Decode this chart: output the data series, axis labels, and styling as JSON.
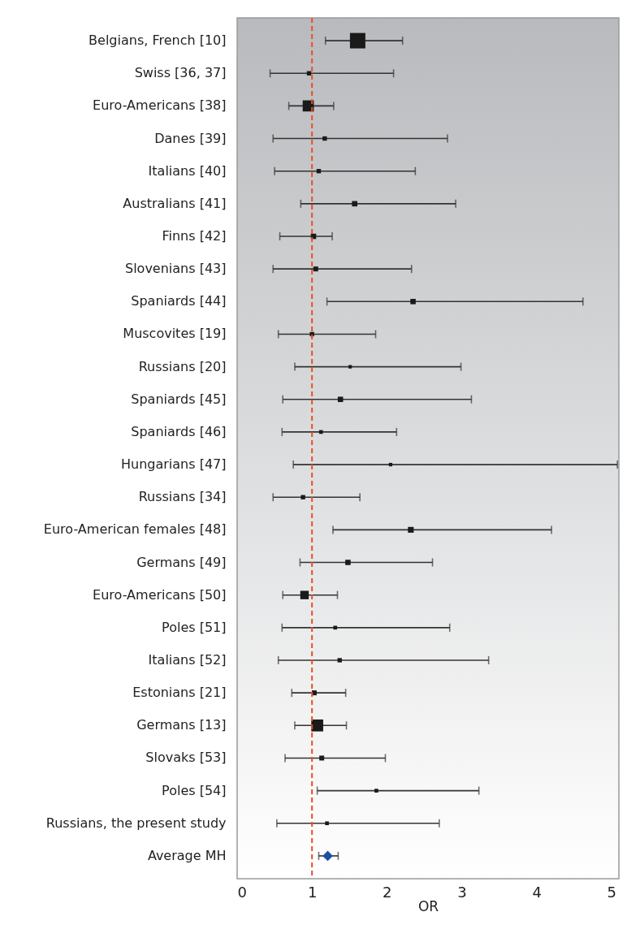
{
  "chart_data": {
    "type": "bubble",
    "orientation": "horizontal",
    "xlabel": "OR",
    "xlim": [
      0,
      5.1
    ],
    "xticks": [
      0,
      1,
      2,
      3,
      4,
      5
    ],
    "grid": false,
    "categories": [
      "Belgians, French [10]",
      "Swiss [36, 37]",
      "Euro-Americans [38]",
      "Danes [39]",
      "Italians [40]",
      "Australians [41]",
      "Finns [42]",
      "Slovenians [43]",
      "Spaniards [44]",
      "Muscovites [19]",
      "Russians [20]",
      "Spaniards [45]",
      "Spaniards [46]",
      "Hungarians [47]",
      "Russians [34]",
      "Euro-American females [48]",
      "Germans [49]",
      "Euro-Americans [50]",
      "Poles [51]",
      "Italians [52]",
      "Estonians [21]",
      "Germans [13]",
      "Slovaks [53]",
      "Poles [54]",
      "Russians, the present study",
      "Average MH"
    ],
    "series": [
      {
        "marker": "square",
        "color": "#1a1a1a",
        "values": [
          1.61,
          0.96,
          0.95,
          1.17,
          1.09,
          1.57,
          1.02,
          1.05,
          2.35,
          1.0,
          1.51,
          1.38,
          1.12,
          2.05,
          0.88,
          2.32,
          1.48,
          0.9,
          1.31,
          1.37,
          1.03,
          1.07,
          1.13,
          1.86,
          1.2,
          null
        ],
        "sizes": [
          1,
          0.08,
          0.52,
          0.08,
          0.08,
          0.12,
          0.12,
          0.1,
          0.12,
          0.08,
          0.05,
          0.12,
          0.06,
          0.05,
          0.08,
          0.14,
          0.12,
          0.3,
          0.06,
          0.08,
          0.1,
          0.6,
          0.1,
          0.06,
          0.06,
          null
        ],
        "errors": [
          [
            1.18,
            2.21
          ],
          [
            0.44,
            2.09
          ],
          [
            0.69,
            1.29
          ],
          [
            0.48,
            2.81
          ],
          [
            0.5,
            2.38
          ],
          [
            0.85,
            2.92
          ],
          [
            0.57,
            1.27
          ],
          [
            0.48,
            2.33
          ],
          [
            1.2,
            4.62
          ],
          [
            0.55,
            1.85
          ],
          [
            0.77,
            2.99
          ],
          [
            0.61,
            3.13
          ],
          [
            0.6,
            2.13
          ],
          [
            0.75,
            5.08
          ],
          [
            0.48,
            1.64
          ],
          [
            1.28,
            4.2
          ],
          [
            0.84,
            2.61
          ],
          [
            0.61,
            1.34
          ],
          [
            0.6,
            2.84
          ],
          [
            0.55,
            3.36
          ],
          [
            0.73,
            1.45
          ],
          [
            0.77,
            1.46
          ],
          [
            0.64,
            1.98
          ],
          [
            1.07,
            3.23
          ],
          [
            0.53,
            2.7
          ],
          null
        ]
      },
      {
        "type": "scatter",
        "marker": "diamond",
        "color": "#1f4fa0",
        "values": [
          null,
          null,
          null,
          null,
          null,
          null,
          null,
          null,
          null,
          null,
          null,
          null,
          null,
          null,
          null,
          null,
          null,
          null,
          null,
          null,
          null,
          null,
          null,
          null,
          null,
          1.21
        ],
        "errors": [
          null,
          null,
          null,
          null,
          null,
          null,
          null,
          null,
          null,
          null,
          null,
          null,
          null,
          null,
          null,
          null,
          null,
          null,
          null,
          null,
          null,
          null,
          null,
          null,
          null,
          [
            1.09,
            1.35
          ]
        ]
      }
    ],
    "ref_lines": [
      {
        "axis": "x",
        "value": 1,
        "color": "#e8502a",
        "line_style": "dashed"
      }
    ]
  }
}
